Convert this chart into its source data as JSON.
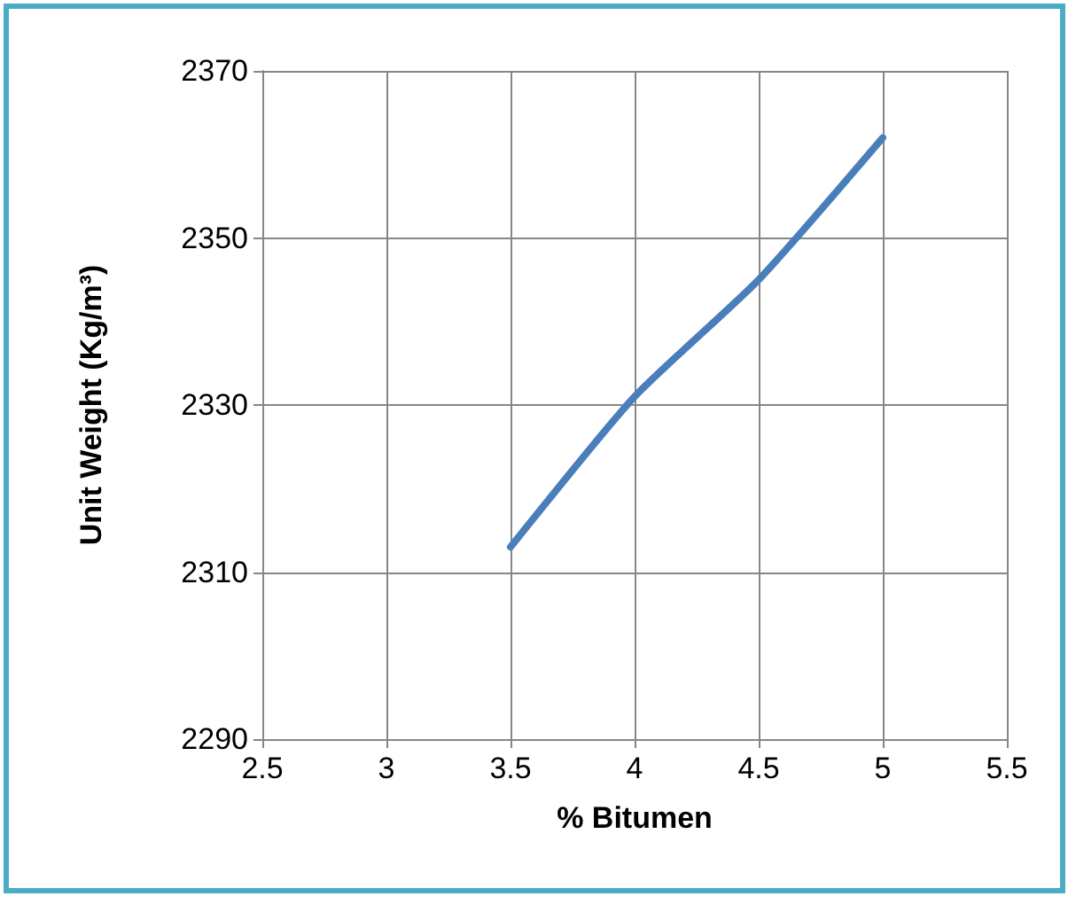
{
  "chart_data": {
    "type": "line",
    "xlabel": "% Bitumen",
    "ylabel": "Unit Weight (Kg/m³)",
    "x": [
      3.5,
      4,
      4.5,
      5
    ],
    "series": [
      {
        "color": "#4a7ebb",
        "values": [
          2313,
          2331,
          2345,
          2362
        ]
      }
    ],
    "xlim": [
      2.5,
      5.5
    ],
    "xticks": [
      2.5,
      3,
      3.5,
      4,
      4.5,
      5,
      5.5
    ],
    "ylim": [
      2290,
      2370
    ],
    "yticks": [
      2290,
      2310,
      2330,
      2350,
      2370
    ],
    "grid": true,
    "marker": "none",
    "line_style": "solid"
  }
}
